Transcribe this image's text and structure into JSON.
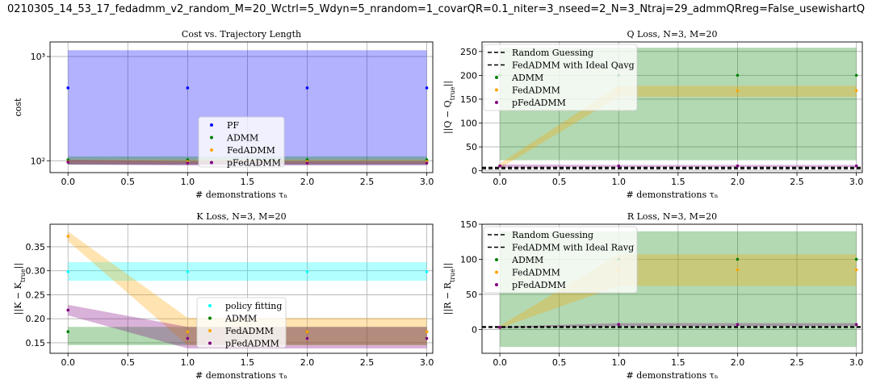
{
  "figure_title": "0210305_14_53_17_fedadmm_v2_random_M=20_Wctrl=5_Wdyn=5_nrandom=1_covarQR=0.1_niter=3_nseed=2_N=3_Ntraj=29_admmQRreg=False_usewishartQ",
  "colors": {
    "PF": "#0000ff",
    "ADMM": "#008000",
    "FedADMM": "#ffa500",
    "pFedADMM": "#800080",
    "policy": "#00ffff",
    "ref": "#000000"
  },
  "chart_data": [
    {
      "type": "scatter",
      "title": "Cost vs. Trajectory Length",
      "xlabel": "# demonstrations τₙ",
      "ylabel": "cost",
      "x": [
        0,
        1,
        2,
        3
      ],
      "xlim": [
        -0.15,
        3.05
      ],
      "xticks": [
        0.0,
        0.5,
        1.0,
        1.5,
        2.0,
        2.5,
        3.0
      ],
      "yscale": "log",
      "ylim": [
        77,
        1380
      ],
      "ytick_labels": [
        {
          "value": 1000,
          "label": "10³"
        },
        {
          "value": 100,
          "label": "10²"
        }
      ],
      "grid": true,
      "legend_position": "lower-center",
      "series": [
        {
          "name": "PF",
          "color": "#0000ff",
          "y": [
            500,
            500,
            500,
            500
          ],
          "lower": [
            92,
            92,
            92,
            92
          ],
          "upper": [
            1150,
            1150,
            1150,
            1150
          ]
        },
        {
          "name": "ADMM",
          "color": "#008000",
          "y": [
            102,
            102,
            102,
            102
          ],
          "lower": [
            92,
            92,
            92,
            92
          ],
          "upper": [
            110,
            110,
            110,
            110
          ]
        },
        {
          "name": "FedADMM",
          "color": "#ffa500",
          "y": [
            98,
            98,
            98,
            98
          ],
          "lower": [
            93,
            93,
            93,
            93
          ],
          "upper": [
            103,
            103,
            103,
            103
          ]
        },
        {
          "name": "pFedADMM",
          "color": "#800080",
          "y": [
            97,
            95,
            95,
            95
          ],
          "lower": [
            92,
            90,
            90,
            90
          ],
          "upper": [
            102,
            99,
            99,
            99
          ]
        }
      ]
    },
    {
      "type": "scatter",
      "title": "Q Loss, N=3, M=20",
      "xlabel": "# demonstrations τₙ",
      "ylabel": "||Q − Q_true||",
      "x": [
        0,
        1,
        2,
        3
      ],
      "xlim": [
        -0.15,
        3.05
      ],
      "xticks": [
        0.0,
        0.5,
        1.0,
        1.5,
        2.0,
        2.5,
        3.0
      ],
      "ylim": [
        -4,
        270
      ],
      "yticks": [
        0,
        50,
        100,
        150,
        200,
        250
      ],
      "grid": true,
      "legend_position": "top-left",
      "reference_lines": [
        {
          "name": "Random Guessing",
          "y": 7
        },
        {
          "name": "FedADMM with Ideal Qavg",
          "y": 4
        }
      ],
      "series": [
        {
          "name": "ADMM",
          "color": "#008000",
          "y": [
            200,
            200,
            200,
            200
          ],
          "lower": [
            22,
            22,
            22,
            22
          ],
          "upper": [
            258,
            258,
            258,
            258
          ]
        },
        {
          "name": "FedADMM",
          "color": "#ffa500",
          "y": [
            10,
            168,
            168,
            168
          ],
          "lower": [
            5,
            155,
            155,
            155
          ],
          "upper": [
            15,
            178,
            178,
            178
          ]
        },
        {
          "name": "pFedADMM",
          "color": "#800080",
          "y": [
            10,
            10,
            10,
            10
          ],
          "lower": [
            6,
            7,
            7,
            7
          ],
          "upper": [
            13,
            12,
            12,
            12
          ]
        }
      ]
    },
    {
      "type": "scatter",
      "title": "K Loss, N=3, M=20",
      "xlabel": "# demonstrations τₙ",
      "ylabel": "||K − K_true||",
      "x": [
        0,
        1,
        2,
        3
      ],
      "xlim": [
        -0.15,
        3.05
      ],
      "xticks": [
        0.0,
        0.5,
        1.0,
        1.5,
        2.0,
        2.5,
        3.0
      ],
      "ylim": [
        0.128,
        0.397
      ],
      "yticks": [
        0.15,
        0.2,
        0.25,
        0.3,
        0.35
      ],
      "grid": true,
      "legend_position": "lower-center",
      "series": [
        {
          "name": "policy fitting",
          "color": "#00ffff",
          "y": [
            0.298,
            0.298,
            0.298,
            0.298
          ],
          "lower": [
            0.279,
            0.279,
            0.279,
            0.279
          ],
          "upper": [
            0.318,
            0.318,
            0.318,
            0.318
          ]
        },
        {
          "name": "ADMM",
          "color": "#008000",
          "y": [
            0.173,
            0.173,
            0.173,
            0.173
          ],
          "lower": [
            0.145,
            0.145,
            0.145,
            0.145
          ],
          "upper": [
            0.183,
            0.183,
            0.183,
            0.183
          ]
        },
        {
          "name": "FedADMM",
          "color": "#ffa500",
          "y": [
            0.372,
            0.173,
            0.173,
            0.173
          ],
          "lower": [
            0.362,
            0.145,
            0.145,
            0.145
          ],
          "upper": [
            0.382,
            0.202,
            0.202,
            0.202
          ]
        },
        {
          "name": "pFedADMM",
          "color": "#800080",
          "y": [
            0.218,
            0.159,
            0.159,
            0.159
          ],
          "lower": [
            0.207,
            0.138,
            0.138,
            0.138
          ],
          "upper": [
            0.229,
            0.183,
            0.183,
            0.183
          ]
        }
      ]
    },
    {
      "type": "scatter",
      "title": "R Loss, N=3, M=20",
      "xlabel": "# demonstrations τₙ",
      "ylabel": "||R − R_true||",
      "x": [
        0,
        1,
        2,
        3
      ],
      "xlim": [
        -0.15,
        3.05
      ],
      "xticks": [
        0.0,
        0.5,
        1.0,
        1.5,
        2.0,
        2.5,
        3.0
      ],
      "ylim": [
        -34,
        150
      ],
      "yticks": [
        0,
        50,
        100,
        150
      ],
      "grid": true,
      "legend_position": "top-left",
      "reference_lines": [
        {
          "name": "Random Guessing",
          "y": 4
        },
        {
          "name": "FedADMM with Ideal Ravg",
          "y": 3
        }
      ],
      "series": [
        {
          "name": "ADMM",
          "color": "#008000",
          "y": [
            3,
            100,
            100,
            100
          ],
          "lower": [
            -25,
            -25,
            -25,
            -25
          ],
          "upper": [
            140,
            140,
            140,
            140
          ]
        },
        {
          "name": "FedADMM",
          "color": "#ffa500",
          "y": [
            3,
            85,
            85,
            85
          ],
          "lower": [
            2,
            62,
            62,
            62
          ],
          "upper": [
            5,
            107,
            107,
            107
          ]
        },
        {
          "name": "pFedADMM",
          "color": "#800080",
          "y": [
            3,
            7,
            7,
            7
          ],
          "lower": [
            2,
            5,
            5,
            5
          ],
          "upper": [
            4,
            9,
            9,
            9
          ]
        }
      ]
    }
  ]
}
